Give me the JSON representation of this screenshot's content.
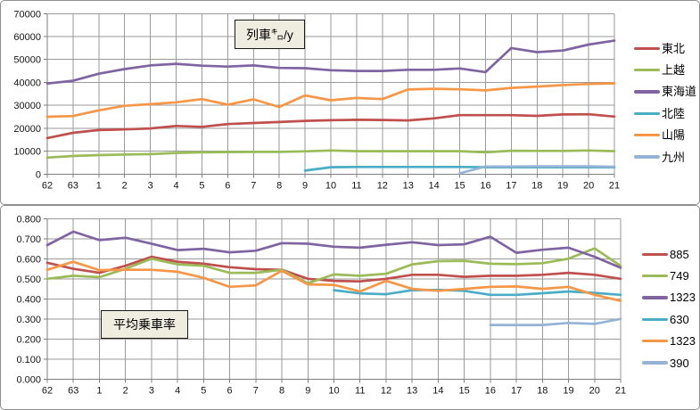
{
  "chart_data": [
    {
      "type": "line",
      "title": "列車㌔/y",
      "xlabel": "",
      "ylabel": "",
      "legend_position": "right",
      "grid": true,
      "x": [
        "62",
        "63",
        "1",
        "2",
        "3",
        "4",
        "5",
        "6",
        "7",
        "8",
        "9",
        "10",
        "11",
        "12",
        "13",
        "14",
        "15",
        "16",
        "17",
        "18",
        "19",
        "20",
        "21"
      ],
      "ylim": [
        0,
        70000
      ],
      "y_ticks": [
        "0",
        "10000",
        "20000",
        "30000",
        "40000",
        "50000",
        "60000",
        "70000"
      ],
      "series": [
        {
          "name": "東北",
          "color": "#C0504D",
          "values": [
            15700,
            18000,
            19200,
            19500,
            19900,
            21000,
            20600,
            21800,
            22300,
            22700,
            23200,
            23500,
            23700,
            23600,
            23400,
            24300,
            25700,
            25700,
            25700,
            25400,
            26000,
            26100,
            25100
          ]
        },
        {
          "name": "上越",
          "color": "#9BBB59",
          "values": [
            7200,
            7900,
            8300,
            8500,
            8700,
            9200,
            9500,
            9600,
            9700,
            9700,
            9900,
            10300,
            10000,
            10000,
            10000,
            10000,
            10000,
            9500,
            10200,
            10100,
            10100,
            10300,
            10000
          ]
        },
        {
          "name": "東海道",
          "color": "#8064A2",
          "values": [
            39500,
            40700,
            43800,
            45800,
            47400,
            48100,
            47300,
            46900,
            47400,
            46300,
            46200,
            45300,
            45000,
            45000,
            45500,
            45500,
            46100,
            44500,
            55000,
            53200,
            53900,
            56500,
            58200
          ]
        },
        {
          "name": "北陸",
          "color": "#4BACC6",
          "values": [
            null,
            null,
            null,
            null,
            null,
            null,
            null,
            null,
            null,
            null,
            1500,
            3000,
            3100,
            3100,
            3100,
            3100,
            3100,
            3000,
            3000,
            3000,
            3000,
            3000,
            2900
          ]
        },
        {
          "name": "山陽",
          "color": "#F79646",
          "values": [
            25000,
            25300,
            27800,
            29800,
            30500,
            31300,
            32700,
            30300,
            32600,
            29300,
            34300,
            32200,
            33200,
            32700,
            36900,
            37200,
            37000,
            36500,
            37600,
            38200,
            38800,
            39300,
            39600
          ]
        },
        {
          "name": "九州",
          "color": "#95B3D7",
          "values": [
            null,
            null,
            null,
            null,
            null,
            null,
            null,
            null,
            null,
            null,
            null,
            null,
            null,
            null,
            null,
            null,
            300,
            3300,
            3300,
            3400,
            3400,
            3400,
            3200
          ]
        }
      ]
    },
    {
      "type": "line",
      "title": "平均乗車率",
      "xlabel": "",
      "ylabel": "",
      "legend_position": "right",
      "grid": true,
      "x": [
        "62",
        "63",
        "1",
        "2",
        "3",
        "4",
        "5",
        "6",
        "7",
        "8",
        "9",
        "10",
        "11",
        "12",
        "13",
        "14",
        "15",
        "16",
        "17",
        "18",
        "19",
        "20",
        "21"
      ],
      "ylim": [
        0,
        0.8
      ],
      "y_ticks": [
        "0.000",
        "0.100",
        "0.200",
        "0.300",
        "0.400",
        "0.500",
        "0.600",
        "0.700",
        "0.800"
      ],
      "series": [
        {
          "name": "885",
          "color": "#C0504D",
          "values": [
            0.58,
            0.55,
            0.53,
            0.565,
            0.61,
            0.585,
            0.575,
            0.558,
            0.548,
            0.545,
            0.5,
            0.49,
            0.487,
            0.5,
            0.52,
            0.52,
            0.51,
            0.515,
            0.515,
            0.52,
            0.53,
            0.52,
            0.5
          ]
        },
        {
          "name": "749",
          "color": "#9BBB59",
          "values": [
            0.5,
            0.515,
            0.508,
            0.55,
            0.6,
            0.572,
            0.565,
            0.53,
            0.53,
            0.545,
            0.478,
            0.522,
            0.515,
            0.525,
            0.572,
            0.588,
            0.59,
            0.575,
            0.573,
            0.578,
            0.6,
            0.652,
            0.565
          ]
        },
        {
          "name": "1323",
          "color": "#8064A2",
          "values": [
            0.668,
            0.735,
            0.693,
            0.705,
            0.675,
            0.643,
            0.65,
            0.632,
            0.64,
            0.678,
            0.675,
            0.66,
            0.655,
            0.67,
            0.682,
            0.668,
            0.672,
            0.71,
            0.63,
            0.645,
            0.655,
            0.61,
            0.555
          ]
        },
        {
          "name": "630",
          "color": "#4BACC6",
          "values": [
            null,
            null,
            null,
            null,
            null,
            null,
            null,
            null,
            null,
            null,
            null,
            0.443,
            0.427,
            0.423,
            0.443,
            0.445,
            0.44,
            0.42,
            0.42,
            0.428,
            0.437,
            0.43,
            0.42
          ]
        },
        {
          "name": "1323",
          "color": "#F79646",
          "values": [
            0.545,
            0.585,
            0.543,
            0.545,
            0.545,
            0.535,
            0.505,
            0.46,
            0.467,
            0.54,
            0.472,
            0.47,
            0.437,
            0.49,
            0.45,
            0.44,
            0.45,
            0.46,
            0.462,
            0.45,
            0.46,
            0.42,
            0.39
          ]
        },
        {
          "name": "390",
          "color": "#95B3D7",
          "values": [
            null,
            null,
            null,
            null,
            null,
            null,
            null,
            null,
            null,
            null,
            null,
            null,
            null,
            null,
            null,
            null,
            null,
            0.27,
            0.27,
            0.27,
            0.28,
            0.275,
            0.3
          ]
        }
      ]
    }
  ]
}
